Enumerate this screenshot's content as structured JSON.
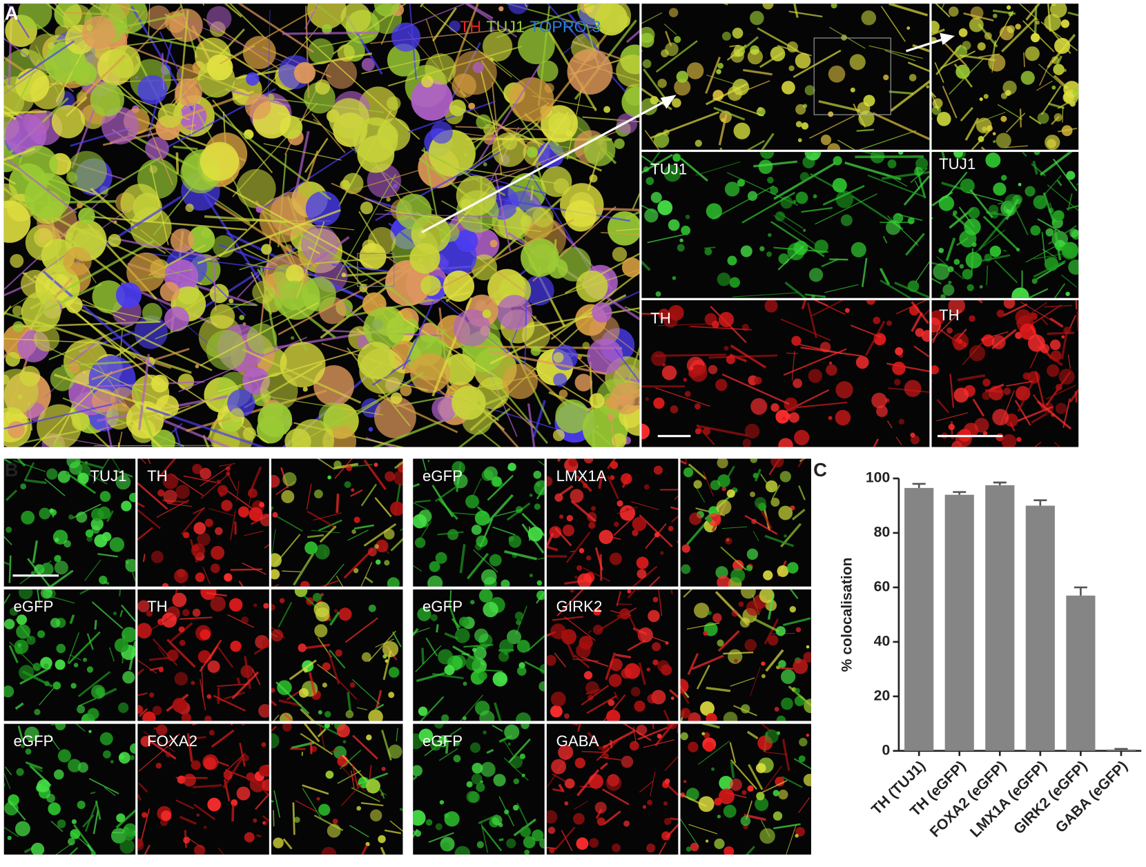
{
  "panel_a": {
    "letter": "A",
    "legend": [
      {
        "text": "TH",
        "color": "#e8262b"
      },
      {
        "text": "TUJ1",
        "color": "#9bd13a"
      },
      {
        "text": "TOPRO-3",
        "color": "#2d7fd6"
      }
    ],
    "inset_labels": [
      "TUJ1",
      "TUJ1",
      "TH",
      "TH"
    ]
  },
  "panel_b": {
    "letter": "B",
    "labels": [
      [
        "TUJ1",
        "TH"
      ],
      [
        "eGFP",
        "TH"
      ],
      [
        "eGFP",
        "FOXA2"
      ],
      [
        "eGFP",
        "LMX1A"
      ],
      [
        "eGFP",
        "GIRK2"
      ],
      [
        "eGFP",
        "GABA"
      ]
    ]
  },
  "chart_data": {
    "type": "bar",
    "panel_letter": "C",
    "ylabel": "% colocalisation",
    "categories": [
      "TH (TUJ1)",
      "TH (eGFP)",
      "FOXA2 (eGFP)",
      "LMX1A (eGFP)",
      "GIRK2 (eGFP)",
      "GABA (eGFP)"
    ],
    "values": [
      96.5,
      94,
      97.5,
      90,
      57,
      0.5
    ],
    "errors": [
      1.5,
      1,
      1,
      2,
      3,
      0.2
    ],
    "color": "#858585",
    "ylim": [
      0,
      100
    ],
    "yticks": [
      0,
      20,
      40,
      60,
      80,
      100
    ]
  }
}
